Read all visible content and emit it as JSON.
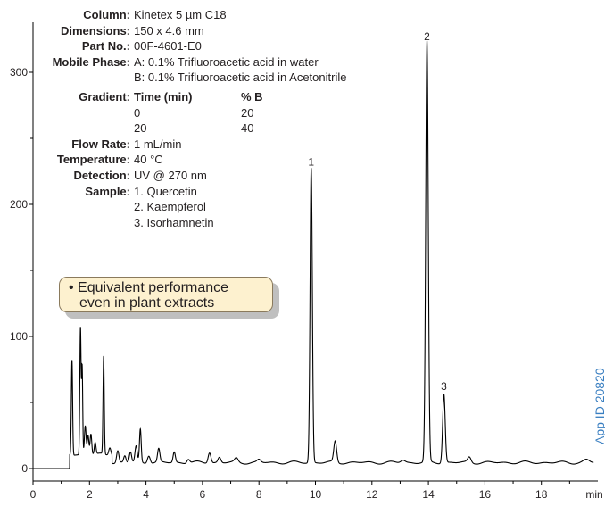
{
  "conditions": [
    {
      "label": "Column:",
      "value": "Kinetex 5 µm C18"
    },
    {
      "label": "Dimensions:",
      "value": "150 x 4.6 mm"
    },
    {
      "label": "Part No.:",
      "value": "00F-4601-E0"
    },
    {
      "label": "Mobile Phase:",
      "value": "A: 0.1% Trifluoroacetic acid in water",
      "value2": "B: 0.1% Trifluoroacetic acid in Acetonitrile"
    }
  ],
  "gradient": {
    "label": "Gradient:",
    "col_time": "Time (min)",
    "col_b": "% B",
    "rows": [
      {
        "time": "0",
        "b": "20"
      },
      {
        "time": "20",
        "b": "40"
      }
    ]
  },
  "conditions_after": [
    {
      "label": "Flow Rate:",
      "value": "1 mL/min"
    },
    {
      "label": "Temperature:",
      "value": "40 °C"
    },
    {
      "label": "Detection:",
      "value": "UV @ 270 nm"
    }
  ],
  "sample": {
    "label": "Sample:",
    "items": [
      "1. Quercetin",
      "2. Kaempferol",
      "3. Isorhamnetin"
    ]
  },
  "callout": {
    "line1": "• Equivalent performance",
    "line2": "even in plant extracts"
  },
  "app_id": "App ID 20820",
  "chart_data": {
    "type": "line",
    "x_unit_label": "min",
    "xlim": [
      0,
      20
    ],
    "ylim": [
      -10,
      330
    ],
    "x_ticks": [
      0,
      2,
      4,
      6,
      8,
      10,
      12,
      14,
      16,
      18
    ],
    "y_ticks": [
      0,
      100,
      200,
      300
    ],
    "line_color": "#000000",
    "baseline": 5,
    "peaks": [
      {
        "x": 1.38,
        "height": 72,
        "width": 0.022
      },
      {
        "x": 1.68,
        "height": 96,
        "width": 0.022
      },
      {
        "x": 1.74,
        "height": 66,
        "width": 0.02
      },
      {
        "x": 1.85,
        "height": 22,
        "width": 0.03
      },
      {
        "x": 1.95,
        "height": 15,
        "width": 0.03
      },
      {
        "x": 2.05,
        "height": 16,
        "width": 0.03
      },
      {
        "x": 2.2,
        "height": 9,
        "width": 0.03
      },
      {
        "x": 2.5,
        "height": 74,
        "width": 0.022
      },
      {
        "x": 2.72,
        "height": 6,
        "width": 0.04
      },
      {
        "x": 3.0,
        "height": 9,
        "width": 0.04
      },
      {
        "x": 3.25,
        "height": 5,
        "width": 0.04
      },
      {
        "x": 3.45,
        "height": 8,
        "width": 0.04
      },
      {
        "x": 3.65,
        "height": 12,
        "width": 0.04
      },
      {
        "x": 3.8,
        "height": 25,
        "width": 0.03
      },
      {
        "x": 4.1,
        "height": 6,
        "width": 0.05
      },
      {
        "x": 4.45,
        "height": 10,
        "width": 0.04
      },
      {
        "x": 5.0,
        "height": 8,
        "width": 0.04
      },
      {
        "x": 5.5,
        "height": 3,
        "width": 0.05
      },
      {
        "x": 6.25,
        "height": 8,
        "width": 0.05
      },
      {
        "x": 6.6,
        "height": 4,
        "width": 0.05
      },
      {
        "x": 7.2,
        "height": 3,
        "width": 0.06
      },
      {
        "x": 8.0,
        "height": 2,
        "width": 0.06
      },
      {
        "x": 9.85,
        "height": 223,
        "width": 0.04
      },
      {
        "x": 10.7,
        "height": 16,
        "width": 0.05
      },
      {
        "x": 13.1,
        "height": 2,
        "width": 0.08
      },
      {
        "x": 13.95,
        "height": 318,
        "width": 0.045
      },
      {
        "x": 14.55,
        "height": 52,
        "width": 0.045
      },
      {
        "x": 15.45,
        "height": 4,
        "width": 0.06
      },
      {
        "x": 19.6,
        "height": 2,
        "width": 0.1
      }
    ],
    "peak_labels": [
      {
        "text": "1",
        "x": 9.85,
        "y": 232
      },
      {
        "text": "2",
        "x": 13.95,
        "y": 327
      },
      {
        "text": "3",
        "x": 14.55,
        "y": 62
      }
    ]
  }
}
